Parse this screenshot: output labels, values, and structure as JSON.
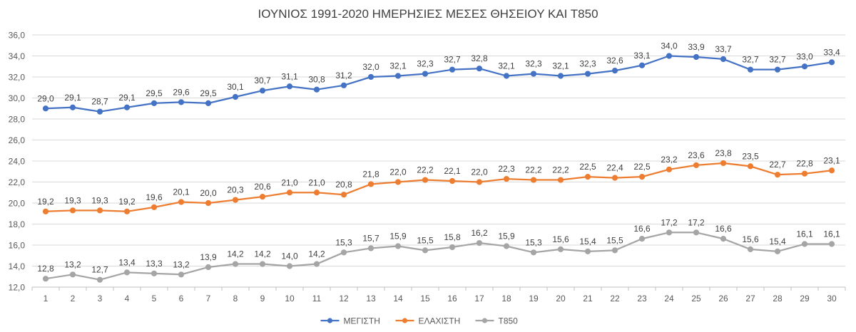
{
  "chart_data": {
    "type": "line",
    "title": "ΙΟΥΝΙΟΣ 1991-2020 ΗΜΕΡΗΣΙΕΣ ΜΕΣΕΣ ΘΗΣΕΙΟΥ ΚΑΙ Τ850",
    "xlabel": "",
    "ylabel": "",
    "x": [
      1,
      2,
      3,
      4,
      5,
      6,
      7,
      8,
      9,
      10,
      11,
      12,
      13,
      14,
      15,
      16,
      17,
      18,
      19,
      20,
      21,
      22,
      23,
      24,
      25,
      26,
      27,
      28,
      29,
      30
    ],
    "ylim": [
      12,
      36
    ],
    "yticks": [
      "12,0",
      "14,0",
      "16,0",
      "18,0",
      "20,0",
      "22,0",
      "24,0",
      "26,0",
      "28,0",
      "30,0",
      "32,0",
      "34,0",
      "36,0"
    ],
    "grid": true,
    "legend": "bottom",
    "series": [
      {
        "name": "ΜΕΓΙΣΤΗ",
        "color": "#4472C4",
        "values": [
          29.0,
          29.1,
          28.7,
          29.1,
          29.5,
          29.6,
          29.5,
          30.1,
          30.7,
          31.1,
          30.8,
          31.2,
          32.0,
          32.1,
          32.3,
          32.7,
          32.8,
          32.1,
          32.3,
          32.1,
          32.3,
          32.6,
          33.1,
          34.0,
          33.9,
          33.7,
          32.7,
          32.7,
          33.0,
          33.4
        ],
        "labels": [
          "29,0",
          "29,1",
          "28,7",
          "29,1",
          "29,5",
          "29,6",
          "29,5",
          "30,1",
          "30,7",
          "31,1",
          "30,8",
          "31,2",
          "32,0",
          "32,1",
          "32,3",
          "32,7",
          "32,8",
          "32,1",
          "32,3",
          "32,1",
          "32,3",
          "32,6",
          "33,1",
          "34,0",
          "33,9",
          "33,7",
          "32,7",
          "32,7",
          "33,0",
          "33,4"
        ]
      },
      {
        "name": "ΕΛΑΧΙΣΤΗ",
        "color": "#ED7D31",
        "values": [
          19.2,
          19.3,
          19.3,
          19.2,
          19.6,
          20.1,
          20.0,
          20.3,
          20.6,
          21.0,
          21.0,
          20.8,
          21.8,
          22.0,
          22.2,
          22.1,
          22.0,
          22.3,
          22.2,
          22.2,
          22.5,
          22.4,
          22.5,
          23.2,
          23.6,
          23.8,
          23.5,
          22.7,
          22.8,
          23.1
        ],
        "labels": [
          "19,2",
          "19,3",
          "19,3",
          "19,2",
          "19,6",
          "20,1",
          "20,0",
          "20,3",
          "20,6",
          "21,0",
          "21,0",
          "20,8",
          "21,8",
          "22,0",
          "22,2",
          "22,1",
          "22,0",
          "22,3",
          "22,2",
          "22,2",
          "22,5",
          "22,4",
          "22,5",
          "23,2",
          "23,6",
          "23,8",
          "23,5",
          "22,7",
          "22,8",
          "23,1"
        ]
      },
      {
        "name": "Τ850",
        "color": "#A5A5A5",
        "values": [
          12.8,
          13.2,
          12.7,
          13.4,
          13.3,
          13.2,
          13.9,
          14.2,
          14.2,
          14.0,
          14.2,
          15.3,
          15.7,
          15.9,
          15.5,
          15.8,
          16.2,
          15.9,
          15.3,
          15.6,
          15.4,
          15.5,
          16.6,
          17.2,
          17.2,
          16.6,
          15.6,
          15.4,
          16.1,
          16.1
        ],
        "labels": [
          "12,8",
          "13,2",
          "12,7",
          "13,4",
          "13,3",
          "13,2",
          "13,9",
          "14,2",
          "14,2",
          "14,0",
          "14,2",
          "15,3",
          "15,7",
          "15,9",
          "15,5",
          "15,8",
          "16,2",
          "15,9",
          "15,3",
          "15,6",
          "15,4",
          "15,5",
          "16,6",
          "17,2",
          "17,2",
          "16,6",
          "15,6",
          "15,4",
          "16,1",
          "16,1"
        ]
      }
    ]
  }
}
